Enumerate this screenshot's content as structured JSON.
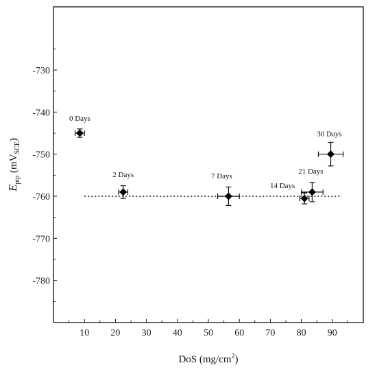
{
  "chart_data": {
    "type": "scatter",
    "xlabel": "DoS (mg/cm²)",
    "ylabel": "E_ptp (mV_SCE)",
    "ylabel_parts": {
      "main": "E",
      "sub1": "ptp",
      "open": " (mV",
      "sub2": "SCE",
      "close": ")"
    },
    "xlabel_parts": {
      "main": "DoS (mg/cm",
      "sup": "2",
      "close": ")"
    },
    "xlim": [
      0,
      100
    ],
    "ylim": [
      -790,
      -715
    ],
    "xticks": [
      10,
      20,
      30,
      40,
      50,
      60,
      70,
      80,
      90
    ],
    "yticks": [
      -730,
      -740,
      -750,
      -760,
      -770,
      -780
    ],
    "grid": false,
    "points": [
      {
        "label": "0 Days",
        "x": 8.5,
        "y": -745,
        "xerr": 1.5,
        "yerr": 1.0
      },
      {
        "label": "2 Days",
        "x": 22.5,
        "y": -759,
        "xerr": 1.5,
        "yerr": 1.5
      },
      {
        "label": "7 Days",
        "x": 56.5,
        "y": -760,
        "xerr": 3.5,
        "yerr": 2.2
      },
      {
        "label": "14 Days",
        "x": 81,
        "y": -760.5,
        "xerr": 1.5,
        "yerr": 1.3
      },
      {
        "label": "21 Days",
        "x": 83.5,
        "y": -759,
        "xerr": 3.5,
        "yerr": 2.3
      },
      {
        "label": "30 Days",
        "x": 89.5,
        "y": -750,
        "xerr": 4.0,
        "yerr": 2.8
      }
    ],
    "reference_line": {
      "y": -760,
      "x_from": 10,
      "x_to": 93,
      "style": "dotted"
    }
  }
}
